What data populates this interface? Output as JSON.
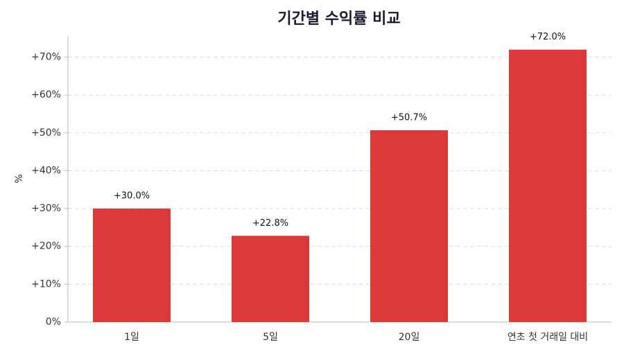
{
  "chart_data": {
    "type": "bar",
    "title": "기간별 수익률 비교",
    "y_label": "%",
    "categories": [
      "1일",
      "5일",
      "20일",
      "연초 첫 거래일 대비"
    ],
    "values": [
      30.0,
      22.8,
      50.7,
      72.0
    ],
    "value_labels": [
      "+30.0%",
      "+22.8%",
      "+50.7%",
      "+72.0%"
    ],
    "color": "#dc3a3a",
    "ylim": [
      0,
      75.6
    ],
    "yticks": [
      {
        "value": 0,
        "label": "0%"
      },
      {
        "value": 10,
        "label": "+10%"
      },
      {
        "value": 20,
        "label": "+20%"
      },
      {
        "value": 30,
        "label": "+30%"
      },
      {
        "value": 40,
        "label": "+40%"
      },
      {
        "value": 50,
        "label": "+50%"
      },
      {
        "value": 60,
        "label": "+60%"
      },
      {
        "value": 70,
        "label": "+70%"
      }
    ],
    "grid": true
  }
}
